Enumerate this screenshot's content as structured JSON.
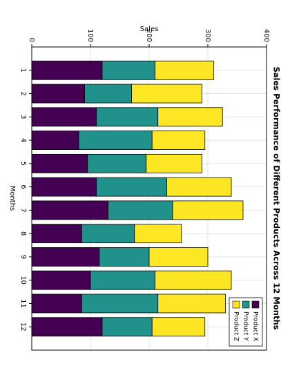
{
  "chart_data": {
    "type": "stacked_bar",
    "title": "Sales Performance of Different Products Across 12 Months",
    "x_label": "Months",
    "y_label": "Sales",
    "categories": [
      "1",
      "2",
      "3",
      "4",
      "5",
      "6",
      "7",
      "8",
      "9",
      "10",
      "11",
      "12"
    ],
    "series": [
      {
        "name": "Product X",
        "color": "#440154",
        "values": [
          120,
          90,
          110,
          80,
          95,
          110,
          130,
          85,
          115,
          100,
          85,
          120
        ]
      },
      {
        "name": "Product Y",
        "color": "#21918c",
        "values": [
          90,
          80,
          105,
          125,
          100,
          120,
          110,
          90,
          85,
          110,
          130,
          85
        ]
      },
      {
        "name": "Product Z",
        "color": "#fde725",
        "values": [
          100,
          120,
          110,
          90,
          95,
          110,
          120,
          80,
          100,
          130,
          115,
          90
        ]
      }
    ],
    "ylim": [
      0,
      400
    ],
    "yticks": [
      0,
      100,
      200,
      300,
      400
    ],
    "grid": true,
    "legend": "upper right"
  }
}
